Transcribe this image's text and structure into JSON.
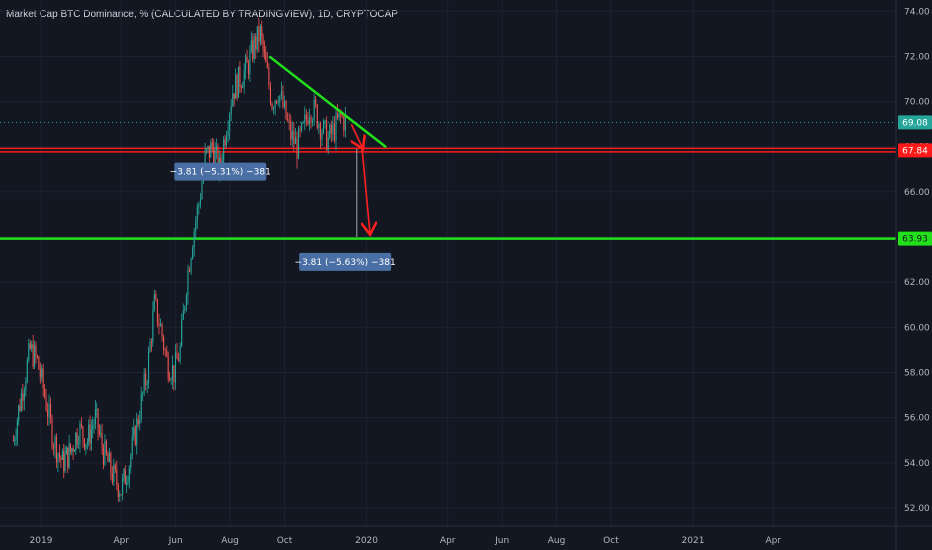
{
  "header": {
    "title": "Market Cap BTC Dominance, % (CALCULATED BY TRADINGVIEW), 1D, CRYPTOCAP"
  },
  "colors": {
    "background": "#131722",
    "grid": "#1e2230",
    "up": "#26a69a",
    "down": "#ef5350",
    "support_red": "#ff1a1a",
    "support_green": "#22e01a",
    "trendline": "#22e01a",
    "current_price": "#26a69a",
    "measure_box": "#4a6fa5",
    "arrow": "#ff2020",
    "axis_text": "#b2b5be"
  },
  "chart_data": {
    "type": "candlestick",
    "title": "Market Cap BTC Dominance, % (CALCULATED BY TRADINGVIEW), 1D, CRYPTOCAP",
    "ylim": [
      51.2,
      74.5
    ],
    "y_ticks": [
      "74.00",
      "72.00",
      "70.00",
      "68.00",
      "66.00",
      "64.00",
      "62.00",
      "60.00",
      "58.00",
      "56.00",
      "54.00",
      "52.00"
    ],
    "x_ticks": [
      "2019",
      "Apr",
      "Jun",
      "Aug",
      "Oct",
      "2020",
      "Apr",
      "Jun",
      "Aug",
      "Oct",
      "2021",
      "Apr"
    ],
    "x_tick_dates": [
      "2019-01-01",
      "2019-04-01",
      "2019-06-01",
      "2019-08-01",
      "2019-10-01",
      "2020-01-01",
      "2020-04-01",
      "2020-06-01",
      "2020-08-01",
      "2020-10-01",
      "2021-01-01",
      "2021-04-01"
    ],
    "grid": true,
    "series": [
      {
        "style": "candle",
        "points": [
          {
            "x": "2018-12-01",
            "y": 55.0
          },
          {
            "x": "2018-12-10",
            "y": 57.0
          },
          {
            "x": "2018-12-20",
            "y": 59.0
          },
          {
            "x": "2018-12-28",
            "y": 58.5
          },
          {
            "x": "2019-01-05",
            "y": 57.0
          },
          {
            "x": "2019-01-15",
            "y": 55.0
          },
          {
            "x": "2019-01-25",
            "y": 54.0
          },
          {
            "x": "2019-02-03",
            "y": 54.5
          },
          {
            "x": "2019-02-12",
            "y": 55.5
          },
          {
            "x": "2019-02-22",
            "y": 55.0
          },
          {
            "x": "2019-03-03",
            "y": 56.0
          },
          {
            "x": "2019-03-12",
            "y": 54.5
          },
          {
            "x": "2019-03-22",
            "y": 53.5
          },
          {
            "x": "2019-04-01",
            "y": 52.8
          },
          {
            "x": "2019-04-10",
            "y": 54.0
          },
          {
            "x": "2019-04-20",
            "y": 56.0
          },
          {
            "x": "2019-04-30",
            "y": 58.0
          },
          {
            "x": "2019-05-08",
            "y": 61.0
          },
          {
            "x": "2019-05-15",
            "y": 60.0
          },
          {
            "x": "2019-05-22",
            "y": 58.5
          },
          {
            "x": "2019-05-30",
            "y": 58.0
          },
          {
            "x": "2019-06-06",
            "y": 59.0
          },
          {
            "x": "2019-06-13",
            "y": 62.0
          },
          {
            "x": "2019-06-20",
            "y": 64.0
          },
          {
            "x": "2019-06-27",
            "y": 65.5
          },
          {
            "x": "2019-07-04",
            "y": 67.5
          },
          {
            "x": "2019-07-12",
            "y": 68.0
          },
          {
            "x": "2019-07-20",
            "y": 67.0
          },
          {
            "x": "2019-07-28",
            "y": 69.0
          },
          {
            "x": "2019-08-04",
            "y": 70.5
          },
          {
            "x": "2019-08-12",
            "y": 71.0
          },
          {
            "x": "2019-08-20",
            "y": 71.5
          },
          {
            "x": "2019-08-28",
            "y": 72.5
          },
          {
            "x": "2019-09-04",
            "y": 73.0
          },
          {
            "x": "2019-09-10",
            "y": 71.5
          },
          {
            "x": "2019-09-17",
            "y": 70.0
          },
          {
            "x": "2019-09-24",
            "y": 70.5
          },
          {
            "x": "2019-10-01",
            "y": 69.5
          },
          {
            "x": "2019-10-08",
            "y": 68.5
          },
          {
            "x": "2019-10-15",
            "y": 68.0
          },
          {
            "x": "2019-10-22",
            "y": 68.7
          },
          {
            "x": "2019-10-29",
            "y": 69.8
          },
          {
            "x": "2019-11-05",
            "y": 69.5
          },
          {
            "x": "2019-11-12",
            "y": 68.8
          },
          {
            "x": "2019-11-19",
            "y": 68.3
          },
          {
            "x": "2019-11-26",
            "y": 68.8
          },
          {
            "x": "2019-12-03",
            "y": 69.3
          },
          {
            "x": "2019-12-10",
            "y": 69.1
          }
        ]
      }
    ],
    "levels": [
      {
        "name": "red-support",
        "y": 67.84,
        "label": "67.84"
      },
      {
        "name": "green-support",
        "y": 63.93,
        "label": "63.93"
      }
    ],
    "current_price": {
      "y": 69.08,
      "label": "69.08"
    },
    "trendline": {
      "x1": "2019-09-14",
      "y1": 72.0,
      "x2": "2020-01-23",
      "y2": 67.98
    },
    "projections": [
      {
        "x1": "2019-12-15",
        "y1": 69.0,
        "x2": "2019-12-28",
        "y2": 67.9
      },
      {
        "x1": "2019-12-27",
        "y1": 67.9,
        "x2": "2020-01-05",
        "y2": 64.1
      }
    ],
    "measure_vertical": {
      "x": "2019-12-21",
      "y1": 67.9,
      "y2": 64.0
    },
    "measures": [
      {
        "text": "−3.81 (−5.31%) −381",
        "x": "2019-07-21",
        "y": 66.9
      },
      {
        "text": "−3.81 (−5.63%) −381",
        "x": "2019-12-08",
        "y": 62.9
      }
    ]
  }
}
